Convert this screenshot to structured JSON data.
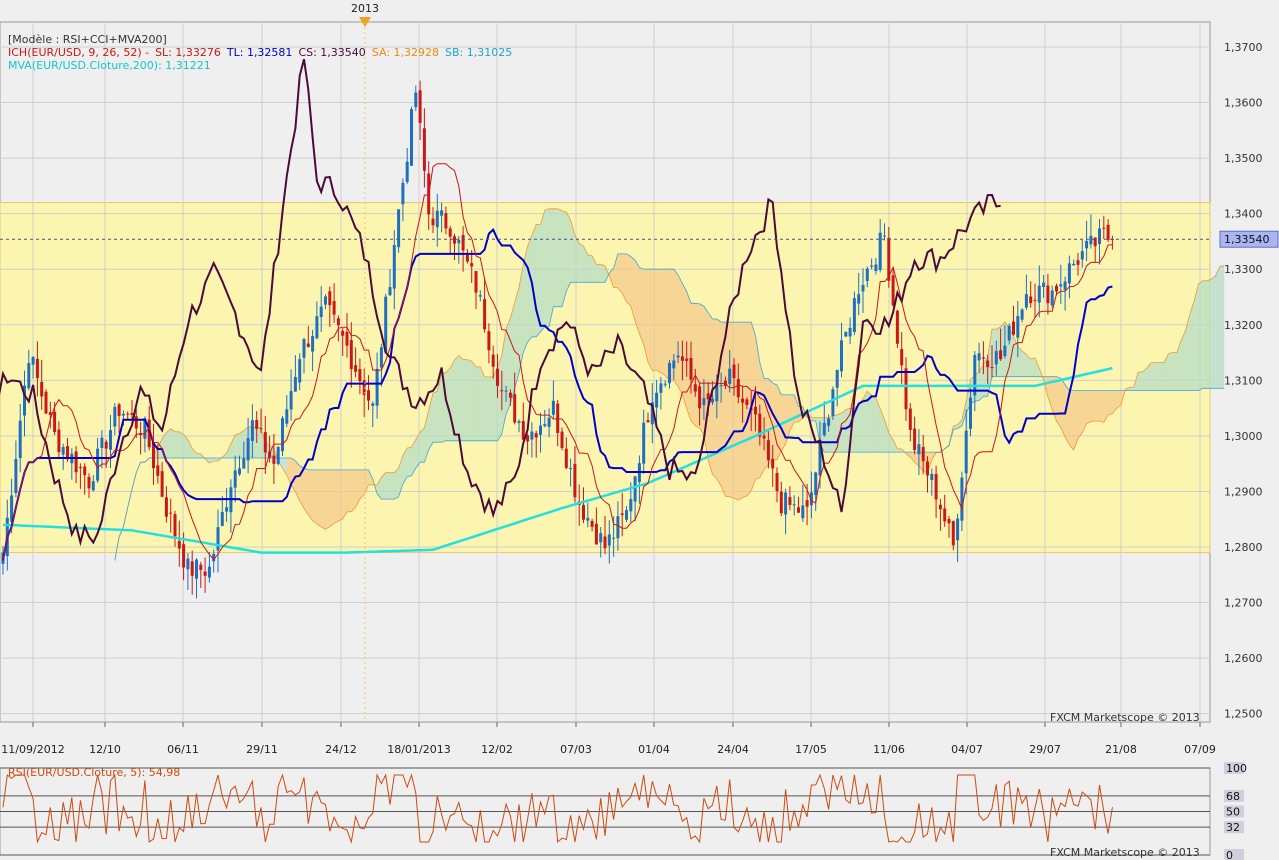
{
  "colors": {
    "bg": "#efefef",
    "grid": "#cfcfcf",
    "band": "#fbf5b0",
    "bandLine": "#e8c96a",
    "up": "#1f6fc0",
    "down": "#c81818",
    "tenkan": "#0000c8",
    "kijun": "#c81818",
    "chikou": "#4a0a3a",
    "mva": "#22e0e0",
    "cloudGreen": "#b5dcc6",
    "cloudOrange": "#f4c98c",
    "cloudBlue": "#b7dbef",
    "priceTag": "#aab6f2",
    "rsi": "#d04a10",
    "marker": "#f0a020"
  },
  "legend": {
    "line1": "[Modèle : RSI+CCI+MVA200]",
    "ich": "ICH(EUR/USD, 9, 26, 52) -",
    "sl": "SL: 1,33276",
    "tl": "TL: 1,32581",
    "cs": "CS: 1,33540",
    "sa": "SA: 1,32928",
    "sb": "SB: 1,31025",
    "mva": "MVA(EUR/USD.Cloture,200): 1,31221"
  },
  "rsi_legend": "RSI(EUR/USD.Cloture, 5): 54,98",
  "credit_main": "FXCM Marketscope © 2013",
  "credit_rsi": "FXCM Marketscope © 2013",
  "marker_label": "2013",
  "price_tag": "1,33540",
  "chart_data": [
    {
      "type": "candlestick",
      "title": "",
      "xlabel": "",
      "ylabel": "",
      "ylim": [
        1.2485,
        1.3745
      ],
      "yticks": [
        "1,2500",
        "1,2600",
        "1,2700",
        "1,2800",
        "1,2900",
        "1,3000",
        "1,3100",
        "1,3200",
        "1,3300",
        "1,3400",
        "1,3500",
        "1,3600",
        "1,3700"
      ],
      "xticks": [
        "11/09/2012",
        "12/10",
        "06/11",
        "29/11",
        "24/12",
        "18/01/2013",
        "12/02",
        "07/03",
        "01/04",
        "24/04",
        "17/05",
        "11/06",
        "04/07",
        "29/07",
        "21/08",
        "07/09"
      ],
      "last_price": 1.3354,
      "range_band": [
        1.279,
        1.342
      ],
      "series": [
        {
          "name": "SL",
          "last": 1.33276
        },
        {
          "name": "TL",
          "last": 1.32581
        },
        {
          "name": "CS",
          "last": 1.3354
        },
        {
          "name": "SA",
          "last": 1.32928
        },
        {
          "name": "SB",
          "last": 1.31025
        },
        {
          "name": "MVA",
          "last": 1.31221
        }
      ],
      "close_anchors": [
        [
          0,
          1.279
        ],
        [
          6,
          1.315
        ],
        [
          12,
          1.3
        ],
        [
          20,
          1.292
        ],
        [
          27,
          1.305
        ],
        [
          33,
          1.301
        ],
        [
          38,
          1.287
        ],
        [
          43,
          1.276
        ],
        [
          48,
          1.276
        ],
        [
          53,
          1.292
        ],
        [
          58,
          1.302
        ],
        [
          63,
          1.295
        ],
        [
          69,
          1.315
        ],
        [
          75,
          1.323
        ],
        [
          80,
          1.316
        ],
        [
          86,
          1.305
        ],
        [
          91,
          1.335
        ],
        [
          96,
          1.362
        ],
        [
          99,
          1.34
        ],
        [
          104,
          1.338
        ],
        [
          110,
          1.327
        ],
        [
          116,
          1.308
        ],
        [
          122,
          1.3
        ],
        [
          128,
          1.305
        ],
        [
          134,
          1.288
        ],
        [
          140,
          1.28
        ],
        [
          145,
          1.286
        ],
        [
          151,
          1.308
        ],
        [
          157,
          1.315
        ],
        [
          163,
          1.305
        ],
        [
          169,
          1.31
        ],
        [
          175,
          1.302
        ],
        [
          181,
          1.288
        ],
        [
          187,
          1.286
        ],
        [
          193,
          1.309
        ],
        [
          199,
          1.327
        ],
        [
          205,
          1.336
        ],
        [
          211,
          1.3
        ],
        [
          217,
          1.29
        ],
        [
          221,
          1.28
        ],
        [
          226,
          1.315
        ],
        [
          232,
          1.314
        ],
        [
          238,
          1.326
        ],
        [
          244,
          1.326
        ],
        [
          250,
          1.332
        ],
        [
          256,
          1.336
        ],
        [
          258,
          1.3354
        ]
      ],
      "mva_anchors": [
        [
          0,
          1.284
        ],
        [
          30,
          1.283
        ],
        [
          60,
          1.279
        ],
        [
          80,
          1.279
        ],
        [
          100,
          1.2795
        ],
        [
          130,
          1.287
        ],
        [
          150,
          1.2915
        ],
        [
          175,
          1.3
        ],
        [
          200,
          1.309
        ],
        [
          220,
          1.309
        ],
        [
          240,
          1.309
        ],
        [
          258,
          1.3122
        ]
      ]
    },
    {
      "type": "line",
      "title": "",
      "name": "RSI(EUR/USD.Cloture, 5)",
      "ylim": [
        0,
        100
      ],
      "yticks": [
        "100",
        "68",
        "50",
        "32",
        "0"
      ],
      "last": 54.98
    }
  ]
}
